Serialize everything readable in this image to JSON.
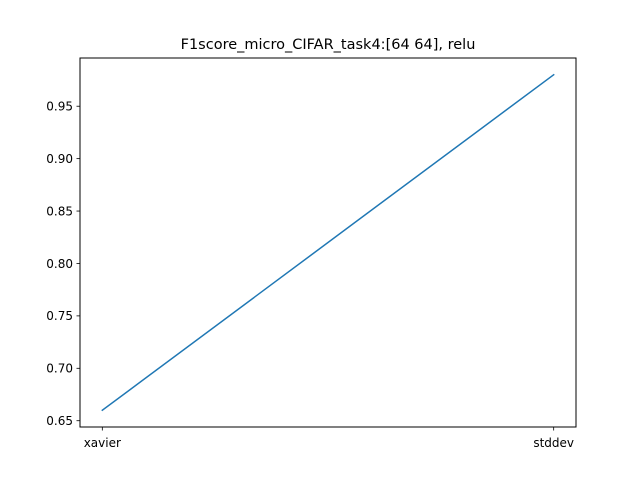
{
  "chart_data": {
    "type": "line",
    "title": "F1score_micro_CIFAR_task4:[64 64], relu",
    "xlabel": "",
    "ylabel": "",
    "categories": [
      "xavier",
      "stddev"
    ],
    "series": [
      {
        "values": [
          0.66,
          0.98
        ],
        "color": "#1f77b4"
      }
    ],
    "ylim": [
      0.644,
      0.996
    ],
    "yticks": [
      0.65,
      0.7,
      0.75,
      0.8,
      0.85,
      0.9,
      0.95
    ],
    "ytick_labels": [
      "0.65",
      "0.70",
      "0.75",
      "0.80",
      "0.85",
      "0.90",
      "0.95"
    ],
    "grid": false,
    "legend": "none"
  }
}
